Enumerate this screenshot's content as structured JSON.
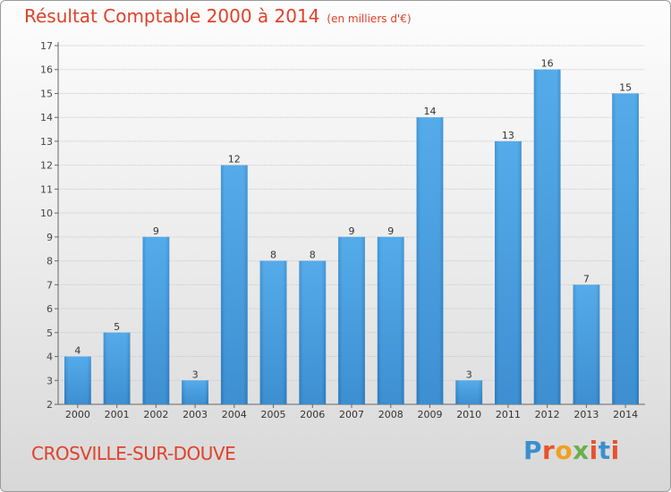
{
  "header": {
    "title": "Résultat Comptable 2000 à 2014",
    "subtitle": "(en milliers d'€)"
  },
  "footer": {
    "city": "CROSVILLE-SUR-DOUVE",
    "logo": {
      "text": "Proxiti",
      "colors": [
        "#3a8fd0",
        "#e8522e",
        "#f0a020",
        "#6ab04c",
        "#e8522e",
        "#3a8fd0",
        "#e8522e"
      ]
    }
  },
  "chart_data": {
    "type": "bar",
    "title": "Résultat Comptable 2000 à 2014",
    "subtitle": "(en milliers d'€)",
    "xlabel": "",
    "ylabel": "",
    "categories": [
      "2000",
      "2001",
      "2002",
      "2003",
      "2004",
      "2005",
      "2006",
      "2007",
      "2008",
      "2009",
      "2010",
      "2011",
      "2012",
      "2013",
      "2014"
    ],
    "values": [
      4,
      5,
      9,
      3,
      12,
      8,
      8,
      9,
      9,
      14,
      3,
      13,
      16,
      7,
      15
    ],
    "ylim": [
      2,
      17
    ],
    "yticks": [
      2,
      3,
      4,
      5,
      6,
      7,
      8,
      9,
      10,
      11,
      12,
      13,
      14,
      15,
      16,
      17
    ],
    "grid": true,
    "bar_color": "#4a9fe0"
  }
}
